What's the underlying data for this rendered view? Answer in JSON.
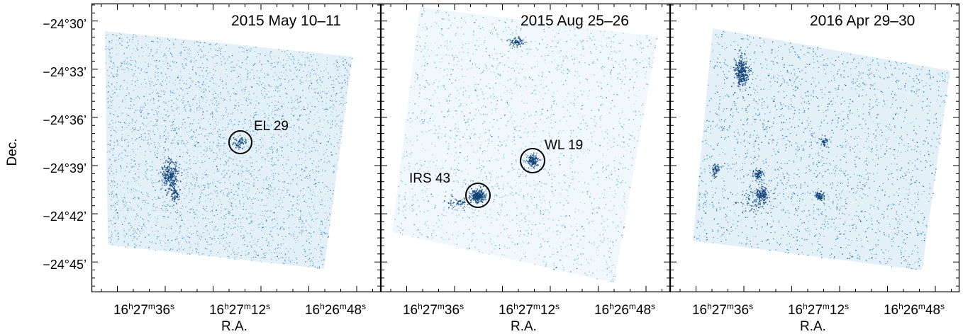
{
  "figure": {
    "y_axis": {
      "label": "Dec.",
      "ticks": [
        "−24°30’",
        "−24°33’",
        "−24°36’",
        "−24°39’",
        "−24°42’",
        "−24°45’"
      ]
    },
    "x_axis": {
      "label": "R.A.",
      "ticks": [
        {
          "h": "16",
          "m": "27",
          "s": "36"
        },
        {
          "h": "16",
          "m": "27",
          "s": "12"
        },
        {
          "h": "16",
          "m": "26",
          "s": "48"
        }
      ]
    },
    "panels": [
      {
        "date": "2015 May 10–11",
        "color": "#1f86c8",
        "sources": [
          {
            "name": "EL 29",
            "circled": true
          }
        ]
      },
      {
        "date": "2015 Aug 25–26",
        "color": "#3aa0e0",
        "sources": [
          {
            "name": "WL 19",
            "circled": true
          },
          {
            "name": "IRS 43",
            "circled": true
          }
        ]
      },
      {
        "date": "2016 Apr 29–30",
        "color": "#1f86c8",
        "sources": []
      }
    ]
  }
}
